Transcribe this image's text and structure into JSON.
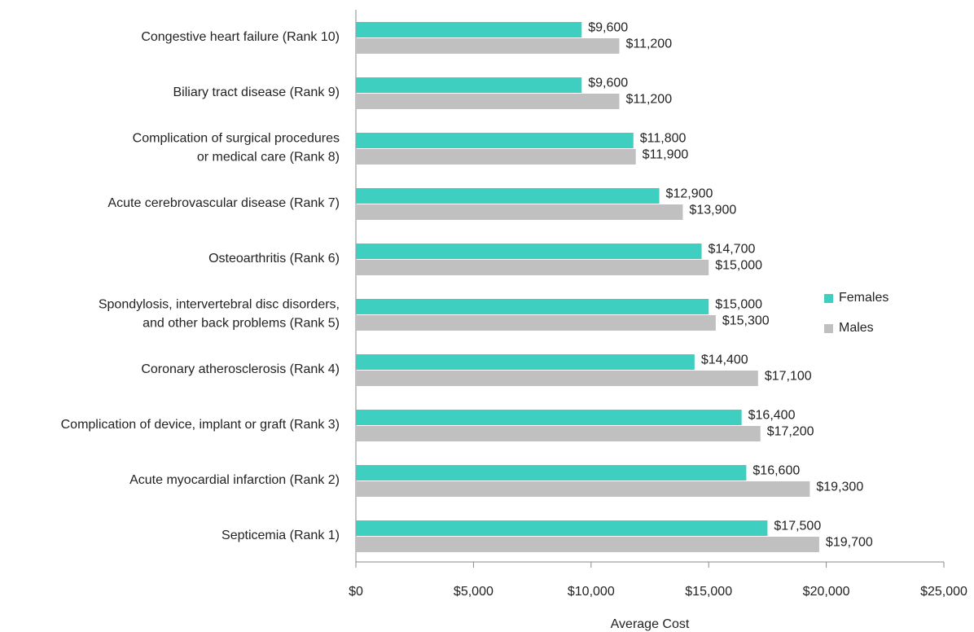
{
  "chart_data": {
    "type": "bar",
    "orientation": "horizontal",
    "xlabel": "Average Cost",
    "categories": [
      "Congestive heart failure (Rank 10)",
      "Biliary tract disease (Rank 9)",
      "Complication of surgical procedures\nor medical care (Rank 8)",
      "Acute cerebrovascular disease (Rank 7)",
      "Osteoarthritis (Rank 6)",
      "Spondylosis, intervertebral disc disorders,\nand other back problems (Rank 5)",
      "Coronary atherosclerosis (Rank 4)",
      "Complication of device, implant or graft (Rank 3)",
      "Acute myocardial infarction (Rank 2)",
      "Septicemia (Rank 1)"
    ],
    "series": [
      {
        "name": "Females",
        "color": "#3ecfc0",
        "values": [
          9600,
          9600,
          11800,
          12900,
          14700,
          15000,
          14400,
          16400,
          16600,
          17500
        ],
        "value_labels": [
          "$9,600",
          "$9,600",
          "$11,800",
          "$12,900",
          "$14,700",
          "$15,000",
          "$14,400",
          "$16,400",
          "$16,600",
          "$17,500"
        ]
      },
      {
        "name": "Males",
        "color": "#c0c0c0",
        "values": [
          11200,
          11200,
          11900,
          13900,
          15000,
          15300,
          17100,
          17200,
          19300,
          19700
        ],
        "value_labels": [
          "$11,200",
          "$11,200",
          "$11,900",
          "$13,900",
          "$15,000",
          "$15,300",
          "$17,100",
          "$17,200",
          "$19,300",
          "$19,700"
        ]
      }
    ],
    "xlim": [
      0,
      25000
    ],
    "xticks": [
      {
        "value": 0,
        "label": "$0"
      },
      {
        "value": 5000,
        "label": "$5,000"
      },
      {
        "value": 10000,
        "label": "$10,000"
      },
      {
        "value": 15000,
        "label": "$15,000"
      },
      {
        "value": 20000,
        "label": "$20,000"
      },
      {
        "value": 25000,
        "label": "$25,000"
      }
    ],
    "legend": "right"
  }
}
